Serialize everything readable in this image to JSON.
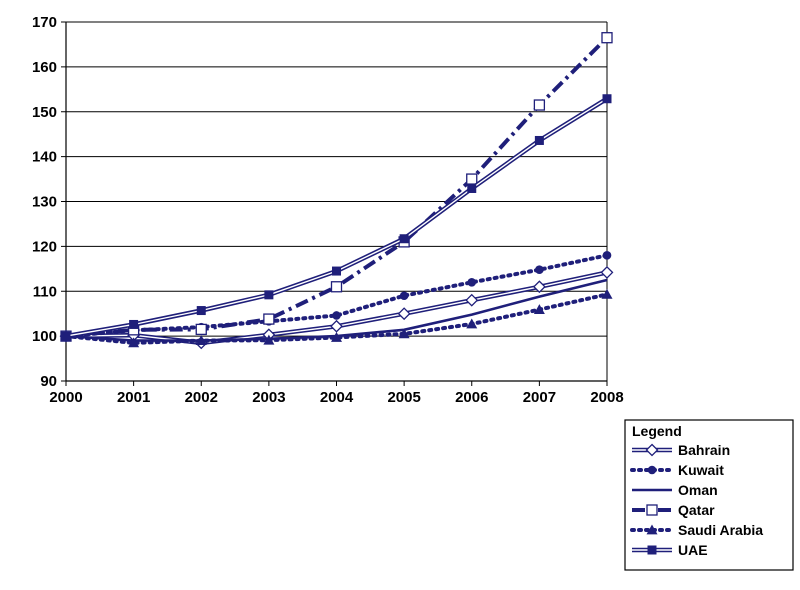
{
  "chart_data": {
    "type": "line",
    "title": "",
    "xlabel": "",
    "ylabel": "",
    "x": [
      "2000",
      "2001",
      "2002",
      "2003",
      "2004",
      "2005",
      "2006",
      "2007",
      "2008"
    ],
    "ylim": [
      90,
      170
    ],
    "yticks": [
      "90",
      "100",
      "110",
      "120",
      "130",
      "140",
      "150",
      "160",
      "170"
    ],
    "grid": "horizontal",
    "legend_title": "Legend",
    "legend_position": "bottom-right",
    "color": "#1f1f7a",
    "series": [
      {
        "name": "Bahrain",
        "style": "double-line-open-diamond",
        "values": [
          100,
          100.2,
          98.5,
          100.3,
          102.2,
          105,
          108,
          111,
          114.2
        ]
      },
      {
        "name": "Kuwait",
        "style": "dotted-filled-circle",
        "values": [
          100,
          101.3,
          102,
          103.3,
          104.6,
          109,
          112,
          114.8,
          118
        ]
      },
      {
        "name": "Oman",
        "style": "solid-no-marker",
        "values": [
          100,
          99,
          99,
          99.4,
          100,
          101.4,
          104.8,
          108.8,
          112.5
        ]
      },
      {
        "name": "Qatar",
        "style": "dashdot-open-square",
        "values": [
          100,
          101.4,
          101.5,
          103.8,
          111,
          121,
          135,
          151.5,
          166.5
        ]
      },
      {
        "name": "Saudi Arabia",
        "style": "dotted-filled-triangle",
        "values": [
          100,
          98.5,
          99,
          99.1,
          99.7,
          100.5,
          102.7,
          105.9,
          109.3
        ]
      },
      {
        "name": "UAE",
        "style": "double-line-filled-square",
        "values": [
          100,
          102.6,
          105.7,
          109.2,
          114.5,
          121.7,
          132.9,
          143.6,
          152.9
        ]
      }
    ]
  }
}
